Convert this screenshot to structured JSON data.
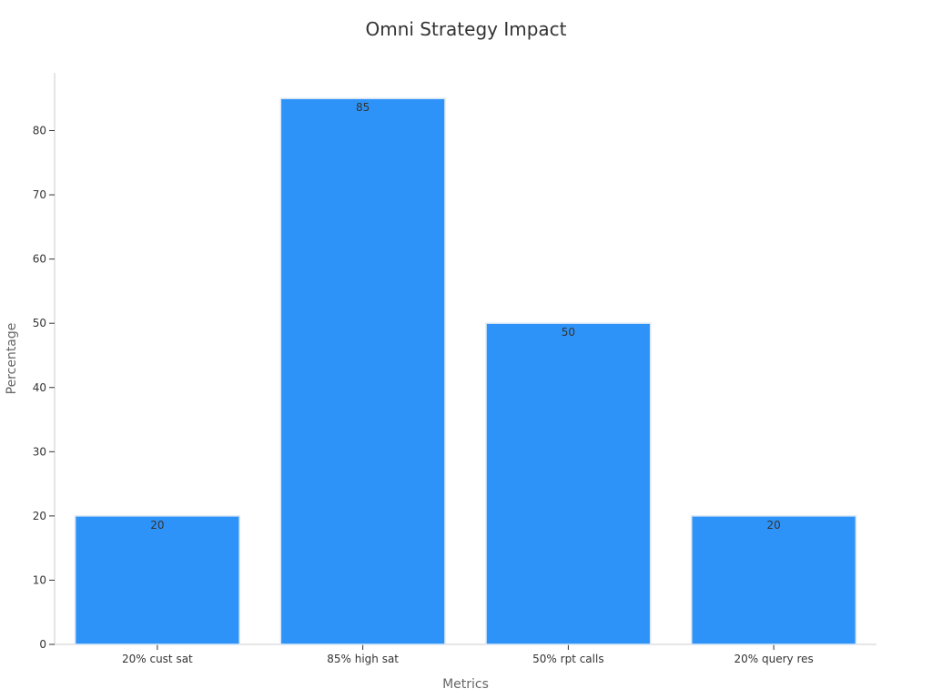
{
  "chart_data": {
    "type": "bar",
    "title": "Omni Strategy Impact",
    "xlabel": "Metrics",
    "ylabel": "Percentage",
    "categories": [
      "20% cust sat",
      "85% high sat",
      "50% rpt calls",
      "20% query res"
    ],
    "values": [
      20,
      85,
      50,
      20
    ],
    "data_labels": [
      "20",
      "85",
      "50",
      "20"
    ],
    "ylim": [
      0,
      89
    ],
    "yticks": [
      0,
      10,
      20,
      30,
      40,
      50,
      60,
      70,
      80
    ],
    "grid": false,
    "legend": "none",
    "colors": {
      "bar": "#2e93f8",
      "bar_edge": "#d9e6f5",
      "axis": "#cccccc",
      "text": "#333333",
      "axis_title": "#666666"
    }
  }
}
